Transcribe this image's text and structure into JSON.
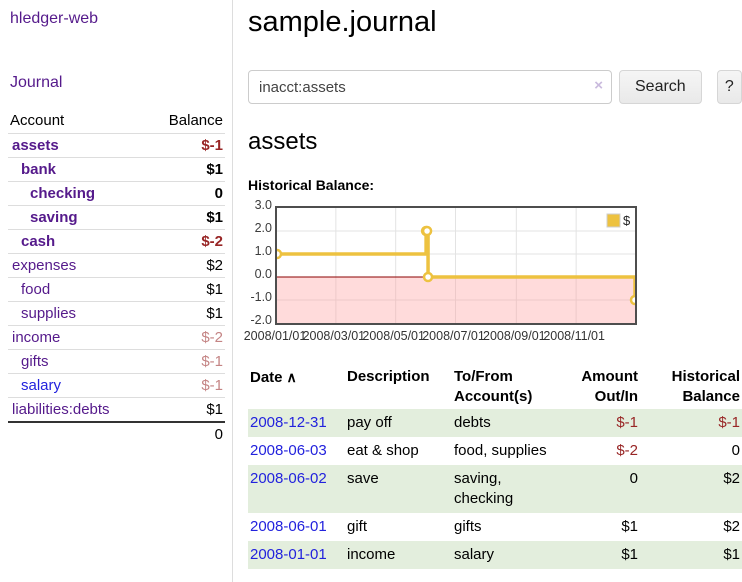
{
  "app": {
    "brand": "hledger-web"
  },
  "sidebar": {
    "journal_link": "Journal",
    "accounts_table": {
      "headers": {
        "account": "Account",
        "balance": "Balance"
      },
      "rows": [
        {
          "account": "assets",
          "depth": 1,
          "bold": true,
          "link": "purple",
          "balance": "$-1",
          "balance_class": "neg"
        },
        {
          "account": "bank",
          "depth": 2,
          "bold": true,
          "link": "purple",
          "balance": "$1",
          "balance_class": ""
        },
        {
          "account": "checking",
          "depth": 3,
          "bold": true,
          "link": "purple",
          "balance": "0",
          "balance_class": ""
        },
        {
          "account": "saving",
          "depth": 3,
          "bold": true,
          "link": "purple",
          "balance": "$1",
          "balance_class": ""
        },
        {
          "account": "cash",
          "depth": 2,
          "bold": true,
          "link": "purple",
          "balance": "$-2",
          "balance_class": "neg"
        },
        {
          "account": "expenses",
          "depth": 1,
          "bold": false,
          "link": "purple",
          "balance": "$2",
          "balance_class": ""
        },
        {
          "account": "food",
          "depth": 2,
          "bold": false,
          "link": "purple",
          "balance": "$1",
          "balance_class": ""
        },
        {
          "account": "supplies",
          "depth": 2,
          "bold": false,
          "link": "purple",
          "balance": "$1",
          "balance_class": ""
        },
        {
          "account": "income",
          "depth": 1,
          "bold": false,
          "link": "purple",
          "balance": "$-2",
          "balance_class": "neg-muted"
        },
        {
          "account": "gifts",
          "depth": 2,
          "bold": false,
          "link": "purple",
          "balance": "$-1",
          "balance_class": "neg-muted"
        },
        {
          "account": "salary",
          "depth": 2,
          "bold": false,
          "link": "blue",
          "balance": "$-1",
          "balance_class": "neg-muted"
        },
        {
          "account": "liabilities:debts",
          "depth": 1,
          "bold": false,
          "link": "purple",
          "balance": "$1",
          "balance_class": ""
        }
      ],
      "total": "0"
    }
  },
  "main": {
    "title": "sample.journal",
    "search": {
      "value": "inacct:assets",
      "clear_icon": "×",
      "button_label": "Search",
      "help_label": "?"
    },
    "section_title": "assets",
    "chart_label": "Historical Balance:"
  },
  "chart_data": {
    "type": "line",
    "title": "Historical Balance",
    "step": true,
    "x_range": [
      "2008-01-01",
      "2008-12-31"
    ],
    "ylim": [
      -2,
      3
    ],
    "series": [
      {
        "name": "$",
        "color": "#EDC240",
        "points": [
          [
            "2008-01-01",
            1
          ],
          [
            "2008-06-01",
            2
          ],
          [
            "2008-06-02",
            2
          ],
          [
            "2008-06-03",
            0
          ],
          [
            "2008-12-31",
            -1
          ]
        ]
      }
    ],
    "x_ticks": [
      {
        "date": "2008-01-01",
        "label": "2008/01/01"
      },
      {
        "date": "2008-03-01",
        "label": "2008/03/01"
      },
      {
        "date": "2008-05-01",
        "label": "2008/05/01"
      },
      {
        "date": "2008-07-01",
        "label": "2008/07/01"
      },
      {
        "date": "2008-09-01",
        "label": "2008/09/01"
      },
      {
        "date": "2008-11-01",
        "label": "2008/11/01"
      }
    ],
    "y_ticks": [
      {
        "v": 3,
        "label": "3.0"
      },
      {
        "v": 2,
        "label": "2.0"
      },
      {
        "v": 1,
        "label": "1.0"
      },
      {
        "v": 0,
        "label": "0.0"
      },
      {
        "v": -1,
        "label": "-1.0"
      },
      {
        "v": -2,
        "label": "-2.0"
      }
    ],
    "grid": true,
    "negative_fill": "#ff9999",
    "zero_line_color": "#8b0000",
    "legend": {
      "label": "$",
      "position": "top-right"
    }
  },
  "register": {
    "headers": {
      "date": "Date",
      "sort_asc_icon": "∧",
      "description": "Description",
      "to_from": "To/From\nAccount(s)",
      "amount": "Amount\nOut/In",
      "balance": "Historical\nBalance"
    },
    "rows": [
      {
        "date": "2008-12-31",
        "description": "pay off",
        "accounts": "debts",
        "amount": "$-1",
        "amount_class": "neg",
        "balance": "$-1",
        "balance_class": "neg",
        "shaded": true
      },
      {
        "date": "2008-06-03",
        "description": "eat & shop",
        "accounts": "food, supplies",
        "amount": "$-2",
        "amount_class": "neg",
        "balance": "0",
        "balance_class": "",
        "shaded": false
      },
      {
        "date": "2008-06-02",
        "description": "save",
        "accounts": "saving, checking",
        "amount": "0",
        "amount_class": "",
        "balance": "$2",
        "balance_class": "",
        "shaded": true
      },
      {
        "date": "2008-06-01",
        "description": "gift",
        "accounts": "gifts",
        "amount": "$1",
        "amount_class": "",
        "balance": "$2",
        "balance_class": "",
        "shaded": false
      },
      {
        "date": "2008-01-01",
        "description": "income",
        "accounts": "salary",
        "amount": "$1",
        "amount_class": "",
        "balance": "$1",
        "balance_class": "",
        "shaded": true
      }
    ]
  }
}
